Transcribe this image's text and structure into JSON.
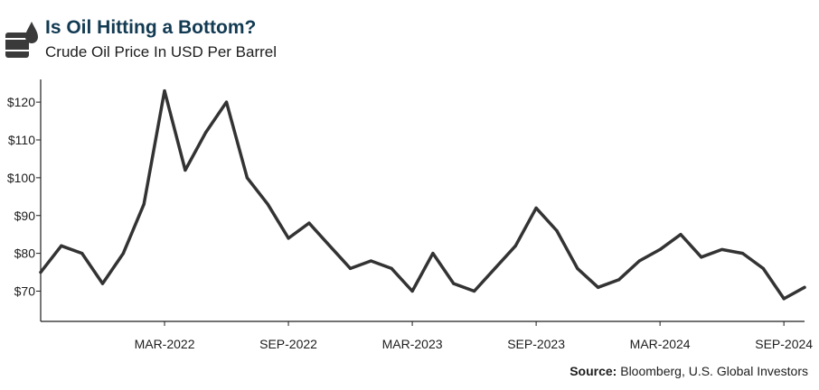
{
  "header": {
    "title": "Is Oil Hitting a Bottom?",
    "subtitle": "Crude Oil Price In USD Per Barrel",
    "logo_icon": "oil-barrel-drop-icon"
  },
  "source": {
    "label": "Source:",
    "text": "Bloomberg, U.S. Global Investors"
  },
  "colors": {
    "line": "#333333",
    "axis": "#1d1d1d",
    "title": "#123a52"
  },
  "chart_data": {
    "type": "line",
    "title": "Is Oil Hitting a Bottom?",
    "subtitle": "Crude Oil Price In USD Per Barrel",
    "xlabel": "",
    "ylabel": "",
    "x_range": [
      "2021-09",
      "2024-10"
    ],
    "ylim": [
      62,
      126
    ],
    "y_ticks": [
      70,
      80,
      90,
      100,
      110,
      120
    ],
    "y_tick_labels": [
      "$70",
      "$80",
      "$90",
      "$100",
      "$110",
      "$120"
    ],
    "x_ticks": [
      "2022-03",
      "2022-09",
      "2023-03",
      "2023-09",
      "2024-03",
      "2024-09"
    ],
    "x_tick_labels": [
      "MAR-2022",
      "SEP-2022",
      "MAR-2023",
      "SEP-2023",
      "MAR-2024",
      "SEP-2024"
    ],
    "grid": false,
    "series": [
      {
        "x": [
          "2021-09",
          "2021-10",
          "2021-11",
          "2021-12",
          "2022-01",
          "2022-02",
          "2022-03",
          "2022-04",
          "2022-05",
          "2022-06",
          "2022-07",
          "2022-08",
          "2022-09",
          "2022-10",
          "2022-11",
          "2022-12",
          "2023-01",
          "2023-02",
          "2023-03",
          "2023-04",
          "2023-05",
          "2023-06",
          "2023-07",
          "2023-08",
          "2023-09",
          "2023-10",
          "2023-11",
          "2023-12",
          "2024-01",
          "2024-02",
          "2024-03",
          "2024-04",
          "2024-05",
          "2024-06",
          "2024-07",
          "2024-08",
          "2024-09",
          "2024-10"
        ],
        "y": [
          75,
          82,
          80,
          72,
          80,
          93,
          123,
          102,
          112,
          120,
          100,
          93,
          84,
          88,
          82,
          76,
          78,
          76,
          70,
          80,
          72,
          70,
          76,
          82,
          92,
          86,
          76,
          71,
          73,
          78,
          81,
          85,
          79,
          81,
          80,
          76,
          68,
          71
        ]
      }
    ]
  }
}
